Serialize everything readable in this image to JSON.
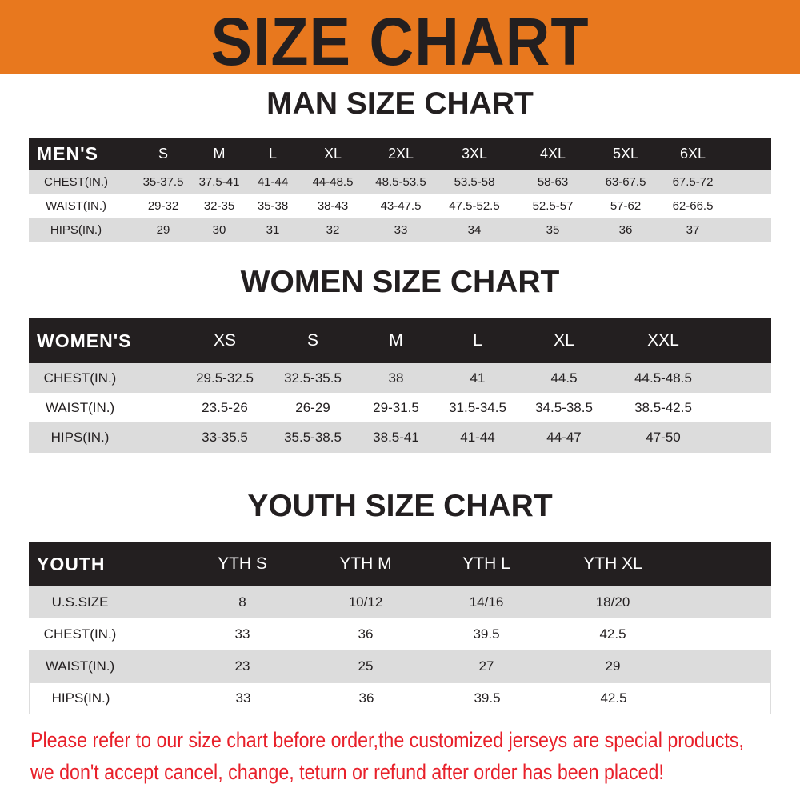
{
  "title": "SIZE CHART",
  "colors": {
    "banner": "#e8781e",
    "header_row": "#231f20",
    "stripe": "#dcdcdc",
    "note": "#e8202a"
  },
  "men": {
    "title": "MAN SIZE CHART",
    "header": [
      "MEN'S",
      "S",
      "M",
      "L",
      "XL",
      "2XL",
      "3XL",
      "4XL",
      "5XL",
      "6XL"
    ],
    "rows": [
      [
        "CHEST(IN.)",
        "35-37.5",
        "37.5-41",
        "41-44",
        "44-48.5",
        "48.5-53.5",
        "53.5-58",
        "58-63",
        "63-67.5",
        "67.5-72"
      ],
      [
        "WAIST(IN.)",
        "29-32",
        "32-35",
        "35-38",
        "38-43",
        "43-47.5",
        "47.5-52.5",
        "52.5-57",
        "57-62",
        "62-66.5"
      ],
      [
        "HIPS(IN.)",
        "29",
        "30",
        "31",
        "32",
        "33",
        "34",
        "35",
        "36",
        "37"
      ]
    ]
  },
  "women": {
    "title": "WOMEN SIZE CHART",
    "header": [
      "WOMEN'S",
      "XS",
      "S",
      "M",
      "L",
      "XL",
      "XXL"
    ],
    "rows": [
      [
        "CHEST(IN.)",
        "29.5-32.5",
        "32.5-35.5",
        "38",
        "41",
        "44.5",
        "44.5-48.5"
      ],
      [
        "WAIST(IN.)",
        "23.5-26",
        "26-29",
        "29-31.5",
        "31.5-34.5",
        "34.5-38.5",
        "38.5-42.5"
      ],
      [
        "HIPS(IN.)",
        "33-35.5",
        "35.5-38.5",
        "38.5-41",
        "41-44",
        "44-47",
        "47-50"
      ]
    ]
  },
  "youth": {
    "title": "YOUTH SIZE CHART",
    "header": [
      "YOUTH",
      "YTH S",
      "YTH M",
      "YTH L",
      "YTH XL"
    ],
    "rows": [
      [
        "U.S.SIZE",
        "8",
        "10/12",
        "14/16",
        "18/20"
      ],
      [
        "CHEST(IN.)",
        "33",
        "36",
        "39.5",
        "42.5"
      ],
      [
        "WAIST(IN.)",
        "23",
        "25",
        "27",
        "29"
      ],
      [
        "HIPS(IN.)",
        "33",
        "36",
        "39.5",
        "42.5"
      ]
    ]
  },
  "notice": [
    "Please refer to our size chart before order,the customized jerseys are special products,",
    "we don't accept cancel, change, teturn or refund after order has been placed!"
  ]
}
